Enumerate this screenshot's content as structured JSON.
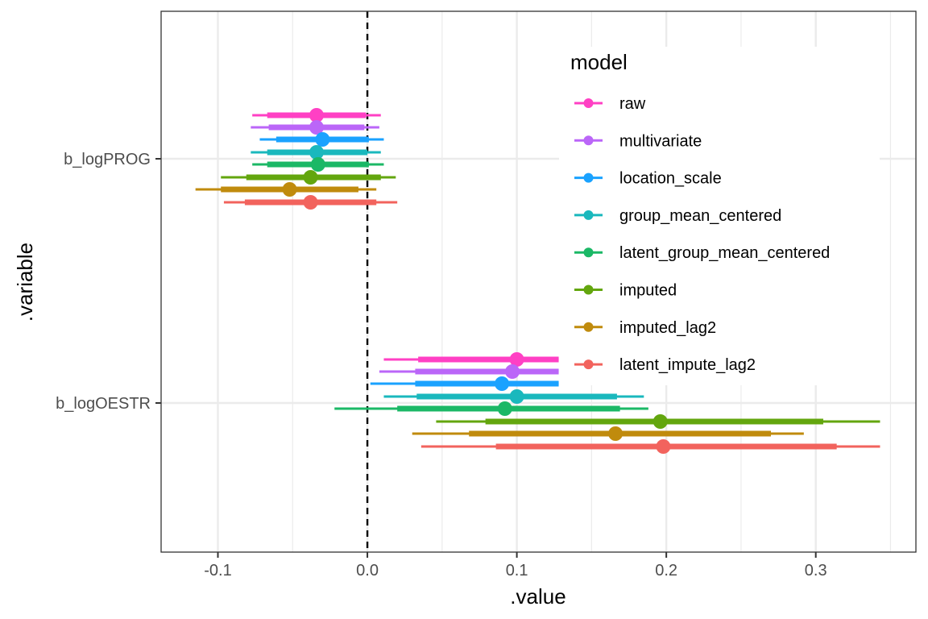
{
  "chart_data": {
    "type": "pointrange",
    "xlabel": ".value",
    "ylabel": ".variable",
    "xlim": [
      -0.138,
      0.367
    ],
    "x_ticks": [
      "-0.1",
      "0.0",
      "0.1",
      "0.2",
      "0.3"
    ],
    "reference_line": 0,
    "categories": [
      "b_logPROG",
      "b_logOESTR"
    ],
    "legend_title": "model",
    "legend_position": "inside-top-right",
    "grid": true,
    "series": [
      {
        "name": "raw",
        "color": "#FF40C4",
        "points": [
          {
            "category": "b_logPROG",
            "estimate": -0.034,
            "inner": [
              -0.067,
              -0.001
            ],
            "outer": [
              -0.077,
              0.009
            ]
          },
          {
            "category": "b_logOESTR",
            "estimate": 0.1,
            "inner": [
              0.034,
              0.128
            ],
            "outer": [
              0.011,
              0.128
            ]
          }
        ]
      },
      {
        "name": "multivariate",
        "color": "#BB66F8",
        "points": [
          {
            "category": "b_logPROG",
            "estimate": -0.034,
            "inner": [
              -0.066,
              -0.002
            ],
            "outer": [
              -0.078,
              0.008
            ]
          },
          {
            "category": "b_logOESTR",
            "estimate": 0.097,
            "inner": [
              0.032,
              0.128
            ],
            "outer": [
              0.008,
              0.128
            ]
          }
        ]
      },
      {
        "name": "location_scale",
        "color": "#1AA2FF",
        "points": [
          {
            "category": "b_logPROG",
            "estimate": -0.03,
            "inner": [
              -0.061,
              0.001
            ],
            "outer": [
              -0.072,
              0.011
            ]
          },
          {
            "category": "b_logOESTR",
            "estimate": 0.09,
            "inner": [
              0.032,
              0.128
            ],
            "outer": [
              0.002,
              0.128
            ]
          }
        ]
      },
      {
        "name": "group_mean_centered",
        "color": "#1AB8BD",
        "points": [
          {
            "category": "b_logPROG",
            "estimate": -0.034,
            "inner": [
              -0.067,
              0.0
            ],
            "outer": [
              -0.078,
              0.009
            ]
          },
          {
            "category": "b_logOESTR",
            "estimate": 0.1,
            "inner": [
              0.033,
              0.167
            ],
            "outer": [
              0.011,
              0.185
            ]
          }
        ]
      },
      {
        "name": "latent_group_mean_centered",
        "color": "#1BB866",
        "points": [
          {
            "category": "b_logPROG",
            "estimate": -0.033,
            "inner": [
              -0.067,
              0.001
            ],
            "outer": [
              -0.077,
              0.011
            ]
          },
          {
            "category": "b_logOESTR",
            "estimate": 0.092,
            "inner": [
              0.02,
              0.169
            ],
            "outer": [
              -0.022,
              0.188
            ]
          }
        ]
      },
      {
        "name": "imputed",
        "color": "#63A60E",
        "points": [
          {
            "category": "b_logPROG",
            "estimate": -0.038,
            "inner": [
              -0.081,
              0.009
            ],
            "outer": [
              -0.098,
              0.019
            ]
          },
          {
            "category": "b_logOESTR",
            "estimate": 0.196,
            "inner": [
              0.079,
              0.305
            ],
            "outer": [
              0.046,
              0.343
            ]
          }
        ]
      },
      {
        "name": "imputed_lag2",
        "color": "#C08B0D",
        "points": [
          {
            "category": "b_logPROG",
            "estimate": -0.052,
            "inner": [
              -0.098,
              -0.006
            ],
            "outer": [
              -0.115,
              0.006
            ]
          },
          {
            "category": "b_logOESTR",
            "estimate": 0.166,
            "inner": [
              0.068,
              0.27
            ],
            "outer": [
              0.03,
              0.292
            ]
          }
        ]
      },
      {
        "name": "latent_impute_lag2",
        "color": "#F2635D",
        "points": [
          {
            "category": "b_logPROG",
            "estimate": -0.038,
            "inner": [
              -0.082,
              0.006
            ],
            "outer": [
              -0.096,
              0.02
            ]
          },
          {
            "category": "b_logOESTR",
            "estimate": 0.198,
            "inner": [
              0.086,
              0.314
            ],
            "outer": [
              0.036,
              0.343
            ]
          }
        ]
      }
    ]
  }
}
